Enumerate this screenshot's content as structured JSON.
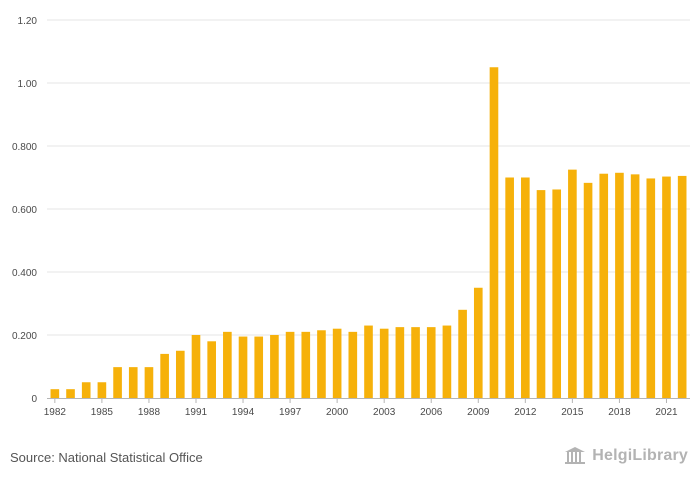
{
  "footer": {
    "source": "Source: National Statistical Office",
    "brand": "HelgiLibrary"
  },
  "colors": {
    "bar": "#F6B10A",
    "grid": "#e6e6e6",
    "axis": "#b5b5b5"
  },
  "chart_data": {
    "type": "bar",
    "title": "",
    "xlabel": "",
    "ylabel": "",
    "ylim": [
      0,
      1.2
    ],
    "yticks": [
      "0",
      "0.200",
      "0.400",
      "0.600",
      "0.800",
      "1.00",
      "1.20"
    ],
    "grid": true,
    "categories": [
      1982,
      1983,
      1984,
      1985,
      1986,
      1987,
      1988,
      1989,
      1990,
      1991,
      1992,
      1993,
      1994,
      1995,
      1996,
      1997,
      1998,
      1999,
      2000,
      2001,
      2002,
      2003,
      2004,
      2005,
      2006,
      2007,
      2008,
      2009,
      2010,
      2011,
      2012,
      2013,
      2014,
      2015,
      2016,
      2017,
      2018,
      2019,
      2020,
      2021,
      2022
    ],
    "xtick_labels": [
      "1982",
      "1985",
      "1988",
      "1991",
      "1994",
      "1997",
      "2000",
      "2003",
      "2006",
      "2009",
      "2012",
      "2015",
      "2018",
      "2021"
    ],
    "values": [
      0.028,
      0.028,
      0.05,
      0.05,
      0.098,
      0.098,
      0.098,
      0.14,
      0.15,
      0.2,
      0.18,
      0.21,
      0.195,
      0.195,
      0.2,
      0.21,
      0.21,
      0.215,
      0.22,
      0.21,
      0.23,
      0.22,
      0.225,
      0.225,
      0.225,
      0.23,
      0.28,
      0.35,
      1.05,
      0.7,
      0.7,
      0.66,
      0.662,
      0.725,
      0.683,
      0.712,
      0.715,
      0.71,
      0.697,
      0.703,
      0.705
    ]
  }
}
